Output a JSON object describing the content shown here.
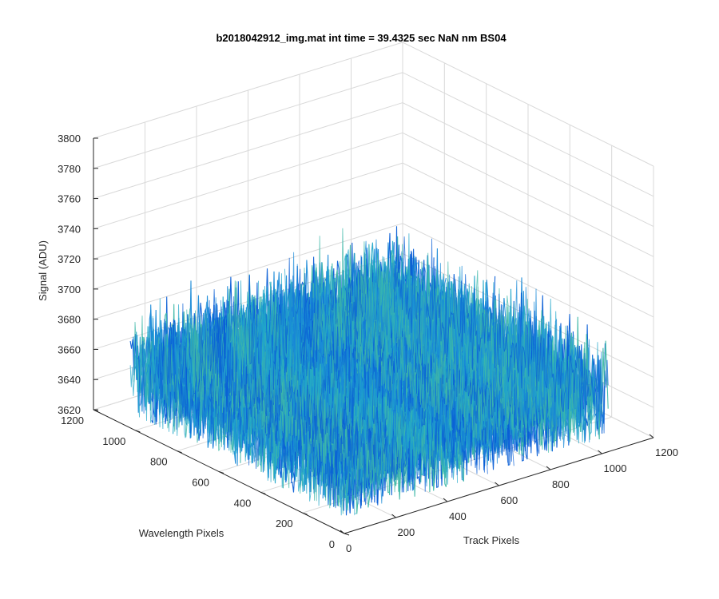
{
  "chart_data": {
    "type": "surface3d",
    "title": "b2018042912_img.mat int time = 39.4325 sec   NaN nm BS04",
    "xlabel": "Track Pixels",
    "ylabel": "Wavelength Pixels",
    "zlabel": "Signal (ADU)",
    "xlim": [
      0,
      1200
    ],
    "ylim": [
      0,
      1200
    ],
    "zlim": [
      3620,
      3800
    ],
    "x_ticks": [
      "0",
      "200",
      "400",
      "600",
      "800",
      "1000",
      "1200"
    ],
    "y_ticks": [
      "0",
      "200",
      "400",
      "600",
      "800",
      "1000",
      "1200"
    ],
    "z_ticks": [
      "3620",
      "3640",
      "3660",
      "3680",
      "3700",
      "3720",
      "3740",
      "3760",
      "3780",
      "3800"
    ],
    "data_extent": {
      "x": [
        0,
        1024
      ],
      "y": [
        0,
        1024
      ]
    },
    "mean_signal": 3660,
    "signal_range": [
      3630,
      3735
    ],
    "grid": true,
    "colormap": [
      "#0a5fd6",
      "#1a8ad8",
      "#21a7c9",
      "#3fb8a8"
    ]
  }
}
